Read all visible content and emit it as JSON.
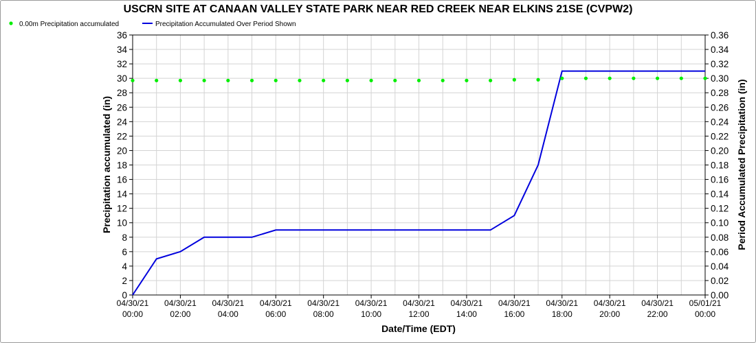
{
  "chart_data": {
    "type": "line",
    "title": "USCRN SITE AT CANAAN VALLEY STATE PARK NEAR RED CREEK NEAR ELKINS 21SE (CVPW2)",
    "xlabel": "Date/Time (EDT)",
    "ylabel_left": "Precipitation accumulated (in)",
    "ylabel_right": "Period Accumulated Precipitation (in)",
    "ylim_left": [
      0,
      36
    ],
    "ylim_right": [
      0,
      0.36
    ],
    "legend_placement": "top-left",
    "grid": true,
    "y_ticks_left": [
      "0",
      "2",
      "4",
      "6",
      "8",
      "10",
      "12",
      "14",
      "16",
      "18",
      "20",
      "22",
      "24",
      "26",
      "28",
      "30",
      "32",
      "34",
      "36"
    ],
    "y_ticks_right": [
      "0.00",
      "0.02",
      "0.04",
      "0.06",
      "0.08",
      "0.10",
      "0.12",
      "0.14",
      "0.16",
      "0.18",
      "0.20",
      "0.22",
      "0.24",
      "0.26",
      "0.28",
      "0.30",
      "0.32",
      "0.34",
      "0.36"
    ],
    "x_ticks": [
      {
        "date": "04/30/21",
        "time": "00:00"
      },
      {
        "date": "04/30/21",
        "time": "02:00"
      },
      {
        "date": "04/30/21",
        "time": "04:00"
      },
      {
        "date": "04/30/21",
        "time": "06:00"
      },
      {
        "date": "04/30/21",
        "time": "08:00"
      },
      {
        "date": "04/30/21",
        "time": "10:00"
      },
      {
        "date": "04/30/21",
        "time": "12:00"
      },
      {
        "date": "04/30/21",
        "time": "14:00"
      },
      {
        "date": "04/30/21",
        "time": "16:00"
      },
      {
        "date": "04/30/21",
        "time": "18:00"
      },
      {
        "date": "04/30/21",
        "time": "20:00"
      },
      {
        "date": "04/30/21",
        "time": "22:00"
      },
      {
        "date": "05/01/21",
        "time": "00:00"
      }
    ],
    "x": [
      "04/30/21 00:00",
      "04/30/21 01:00",
      "04/30/21 02:00",
      "04/30/21 03:00",
      "04/30/21 04:00",
      "04/30/21 05:00",
      "04/30/21 06:00",
      "04/30/21 07:00",
      "04/30/21 08:00",
      "04/30/21 09:00",
      "04/30/21 10:00",
      "04/30/21 11:00",
      "04/30/21 12:00",
      "04/30/21 13:00",
      "04/30/21 14:00",
      "04/30/21 15:00",
      "04/30/21 16:00",
      "04/30/21 17:00",
      "04/30/21 18:00",
      "04/30/21 19:00",
      "04/30/21 20:00",
      "04/30/21 21:00",
      "04/30/21 22:00",
      "04/30/21 23:00",
      "05/01/21 00:00"
    ],
    "series": [
      {
        "name": "0.00m Precipitation accumulated",
        "axis": "left",
        "style": "points",
        "color": "#00ee00",
        "values": [
          29.7,
          29.7,
          29.7,
          29.7,
          29.7,
          29.7,
          29.7,
          29.7,
          29.7,
          29.7,
          29.7,
          29.7,
          29.7,
          29.7,
          29.7,
          29.7,
          29.8,
          29.8,
          30.0,
          30.0,
          30.0,
          30.0,
          30.0,
          30.0,
          30.0
        ]
      },
      {
        "name": "Precipitation Accumulated Over Period Shown",
        "axis": "right",
        "style": "line",
        "color": "#0000dd",
        "values": [
          0.0,
          0.05,
          0.06,
          0.08,
          0.08,
          0.08,
          0.09,
          0.09,
          0.09,
          0.09,
          0.09,
          0.09,
          0.09,
          0.09,
          0.09,
          0.09,
          0.11,
          0.18,
          0.31,
          0.31,
          0.31,
          0.31,
          0.31,
          0.31,
          0.31
        ]
      }
    ]
  }
}
